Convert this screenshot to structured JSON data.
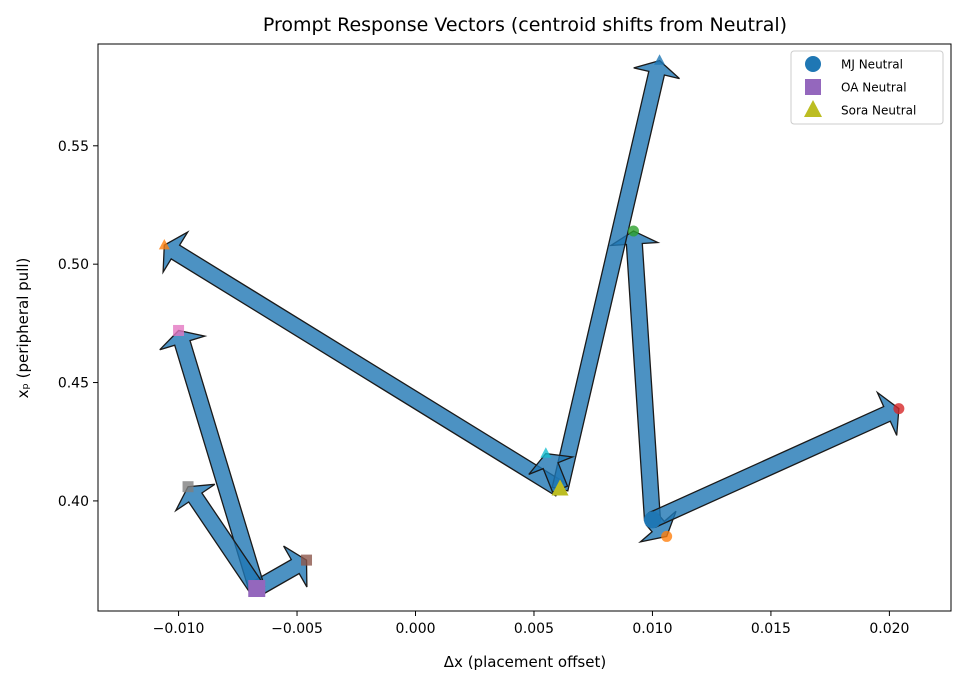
{
  "chart_data": {
    "type": "scatter",
    "title": "Prompt Response Vectors (centroid shifts from Neutral)",
    "xlabel": "Δx (placement offset)",
    "ylabel": "xₚ (peripheral pull)",
    "xlim": [
      -0.0134,
      0.0226
    ],
    "ylim": [
      0.3535,
      0.593
    ],
    "xticks": [
      {
        "v": -0.01,
        "label": "−0.010"
      },
      {
        "v": -0.005,
        "label": "−0.005"
      },
      {
        "v": 0.0,
        "label": "0.000"
      },
      {
        "v": 0.005,
        "label": "0.005"
      },
      {
        "v": 0.01,
        "label": "0.010"
      },
      {
        "v": 0.015,
        "label": "0.015"
      },
      {
        "v": 0.02,
        "label": "0.020"
      }
    ],
    "yticks": [
      {
        "v": 0.4,
        "label": "0.40"
      },
      {
        "v": 0.45,
        "label": "0.45"
      },
      {
        "v": 0.5,
        "label": "0.50"
      },
      {
        "v": 0.55,
        "label": "0.55"
      }
    ],
    "grid": false,
    "legend_position": "top-right",
    "arrow_color": "#1f77b4",
    "series": [
      {
        "name": "MJ Neutral",
        "marker": "circle",
        "color": "#1f77b4",
        "origin": [
          0.01,
          0.392
        ],
        "targets": [
          {
            "x": 0.0106,
            "y": 0.385,
            "color": "#ff7f0e"
          },
          {
            "x": 0.0092,
            "y": 0.514,
            "color": "#2ca02c"
          },
          {
            "x": 0.0204,
            "y": 0.439,
            "color": "#d62728"
          }
        ]
      },
      {
        "name": "OA Neutral",
        "marker": "square",
        "color": "#9467bd",
        "origin": [
          -0.0067,
          0.363
        ],
        "targets": [
          {
            "x": -0.0046,
            "y": 0.375,
            "color": "#8c564b"
          },
          {
            "x": -0.01,
            "y": 0.472,
            "color": "#e377c2"
          },
          {
            "x": -0.0096,
            "y": 0.406,
            "color": "#7f7f7f"
          }
        ]
      },
      {
        "name": "Sora Neutral",
        "marker": "triangle",
        "color": "#bcbd22",
        "origin": [
          0.0061,
          0.405
        ],
        "targets": [
          {
            "x": -0.0106,
            "y": 0.508,
            "color": "#ff7f0e"
          },
          {
            "x": 0.0103,
            "y": 0.586,
            "color": "#1f77b4"
          },
          {
            "x": 0.0055,
            "y": 0.42,
            "color": "#17becf"
          }
        ]
      }
    ]
  }
}
